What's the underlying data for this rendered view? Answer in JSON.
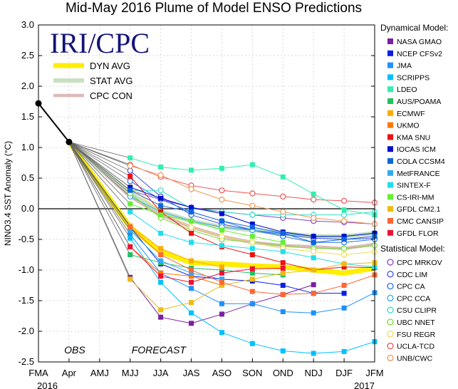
{
  "chart_data": {
    "type": "line",
    "title": "Mid-May 2016 Plume of Model ENSO Predictions",
    "logo_text": "IRI/CPC",
    "ylabel": "NINO3.4 SST Anomaly (°C)",
    "xlabel": "",
    "ylim": [
      -2.5,
      3.0
    ],
    "yticks": [
      "3.0",
      "2.5",
      "2.0",
      "1.5",
      "1.0",
      "0.5",
      "0.0",
      "-0.5",
      "-1.0",
      "-1.5",
      "-2.0",
      "-2.5"
    ],
    "categories": [
      "FMA",
      "Apr",
      "AMJ",
      "MJJ",
      "JJA",
      "JAS",
      "ASO",
      "SON",
      "OND",
      "NDJ",
      "DJF",
      "JFM"
    ],
    "year_labels": {
      "start": "2016",
      "end": "2017"
    },
    "region_labels": {
      "obs": "OBS",
      "forecast": "FORECAST"
    },
    "grid": true,
    "legend": {
      "placement": "right",
      "dynamical_title": "Dynamical Model:",
      "statistical_title": "Statistical Model:"
    },
    "observed": {
      "name": "OBS",
      "color": "#000000",
      "values": [
        1.72,
        1.09
      ]
    },
    "averages": [
      {
        "name": "DYN AVG",
        "color": "#ffee00",
        "values": [
          null,
          1.09,
          null,
          -0.3,
          -0.7,
          -0.88,
          -0.9,
          -0.93,
          -0.95,
          -1.0,
          -1.05,
          -0.97
        ]
      },
      {
        "name": "STAT AVG",
        "color": "#c8e0c0",
        "values": [
          null,
          1.09,
          null,
          0.25,
          -0.05,
          -0.2,
          -0.3,
          -0.35,
          -0.4,
          -0.45,
          -0.45,
          -0.4
        ]
      },
      {
        "name": "CPC CON",
        "color": "#ddb9b9",
        "values": [
          null,
          1.09,
          null,
          0.2,
          -0.1,
          -0.3,
          -0.45,
          -0.55,
          -0.6,
          -0.62,
          -0.65,
          -0.58
        ]
      }
    ],
    "dynamical_series": [
      {
        "name": "NASA GMAO",
        "color": "#7a1fa2",
        "values": [
          null,
          1.09,
          null,
          -1.12,
          -1.77,
          -1.87,
          -1.72,
          -1.55,
          -1.4,
          -1.24,
          null,
          null
        ]
      },
      {
        "name": "NCEP CFSv2",
        "color": "#0a1ee6",
        "values": [
          null,
          1.09,
          null,
          -0.3,
          -0.9,
          -1.1,
          -1.15,
          -1.18,
          -1.25,
          -1.38,
          -1.38,
          null
        ]
      },
      {
        "name": "JMA",
        "color": "#1e90ff",
        "values": [
          null,
          1.09,
          null,
          -0.42,
          -1.05,
          -1.3,
          -1.55,
          -1.55,
          -1.68,
          -1.7,
          -1.62,
          -1.37
        ]
      },
      {
        "name": "SCRIPPS",
        "color": "#00c0ff",
        "values": [
          null,
          1.09,
          null,
          -0.48,
          -1.2,
          -1.7,
          -2.02,
          -2.2,
          -2.32,
          -2.36,
          -2.33,
          -2.17
        ]
      },
      {
        "name": "LDEO",
        "color": "#33eeb0",
        "values": [
          null,
          1.09,
          null,
          0.83,
          0.68,
          0.63,
          0.66,
          0.72,
          0.52,
          0.24,
          -0.02,
          -0.1
        ]
      },
      {
        "name": "AUS/POAMA",
        "color": "#22c066",
        "values": [
          null,
          1.09,
          null,
          -0.75,
          -0.88,
          -0.97,
          -1.0,
          -1.05,
          -1.08,
          null,
          null,
          null
        ]
      },
      {
        "name": "ECMWF",
        "color": "#ffaa00",
        "values": [
          null,
          1.09,
          null,
          -0.28,
          -0.65,
          -0.85,
          -0.95,
          null,
          null,
          null,
          null,
          null
        ]
      },
      {
        "name": "UKMO",
        "color": "#ff7700",
        "values": [
          null,
          1.09,
          null,
          -0.62,
          -1.05,
          -1.1,
          -1.25,
          null,
          null,
          null,
          null,
          null
        ]
      },
      {
        "name": "KMA SNU",
        "color": "#ee1111",
        "values": [
          null,
          1.09,
          null,
          0.53,
          -0.05,
          -0.4,
          -0.62,
          -0.75,
          -0.88,
          -1.0,
          -0.95,
          -0.96
        ]
      },
      {
        "name": "IOCAS ICM",
        "color": "#0010cc",
        "values": [
          null,
          1.09,
          null,
          0.35,
          0.17,
          0.02,
          -0.08,
          -0.25,
          -0.38,
          -0.45,
          -0.45,
          -0.4
        ]
      },
      {
        "name": "COLA CCSM4",
        "color": "#0e66dd",
        "values": [
          null,
          1.09,
          null,
          0.3,
          0.05,
          -0.05,
          -0.2,
          -0.3,
          -0.4,
          -0.55,
          -0.5,
          -0.45
        ]
      },
      {
        "name": "MetFRANCE",
        "color": "#33aaee",
        "values": [
          null,
          1.09,
          null,
          -0.35,
          -0.85,
          -1.05,
          -1.15,
          null,
          null,
          null,
          null,
          null
        ]
      },
      {
        "name": "SINTEX-F",
        "color": "#22ddee",
        "values": [
          null,
          1.09,
          null,
          -0.05,
          -0.4,
          -0.55,
          -0.6,
          -0.65,
          -0.7,
          -0.8,
          -0.9,
          -0.95
        ]
      },
      {
        "name": "CS-IRI-MM",
        "color": "#66ee33",
        "values": [
          null,
          1.09,
          null,
          0.08,
          -0.1,
          -0.2,
          -0.35,
          -0.45,
          -0.55,
          null,
          null,
          null
        ]
      },
      {
        "name": "GFDL CM2.1",
        "color": "#eebb11",
        "values": [
          null,
          1.09,
          null,
          -1.15,
          -1.65,
          -1.53,
          -1.25,
          -1.15,
          -1.05,
          -1.0,
          -0.9,
          -0.88
        ]
      },
      {
        "name": "CMC CANSIP",
        "color": "#ff6633",
        "values": [
          null,
          1.09,
          null,
          -0.3,
          -0.75,
          -1.0,
          -1.2,
          -1.35,
          -1.4,
          -1.38,
          -1.25,
          -1.08
        ]
      },
      {
        "name": "GFDL FLOR",
        "color": "#ee1133",
        "values": [
          null,
          1.09,
          null,
          -0.62,
          -1.1,
          -1.2,
          -1.05,
          -0.98,
          -0.97,
          null,
          null,
          null
        ]
      }
    ],
    "statistical_series": [
      {
        "name": "CPC MRKOV",
        "color": "#8844cc",
        "values": [
          null,
          1.09,
          null,
          0.3,
          0.15,
          0.02,
          -0.05,
          -0.1,
          -0.15,
          -0.2,
          -0.22,
          -0.25
        ]
      },
      {
        "name": "CDC LIM",
        "color": "#4455dd",
        "values": [
          null,
          1.09,
          null,
          0.62,
          0.2,
          -0.1,
          -0.25,
          -0.35,
          -0.42,
          -0.48,
          -0.5,
          -0.48
        ]
      },
      {
        "name": "CPC CA",
        "color": "#2277ee",
        "values": [
          null,
          1.09,
          null,
          0.45,
          0.15,
          -0.05,
          -0.2,
          -0.35,
          -0.45,
          -0.55,
          -0.55,
          -0.5
        ]
      },
      {
        "name": "CPC CCA",
        "color": "#33aaee",
        "values": [
          null,
          1.09,
          null,
          0.2,
          -0.05,
          -0.2,
          -0.3,
          -0.35,
          -0.4,
          -0.45,
          -0.45,
          -0.4
        ]
      },
      {
        "name": "CSU CLIPR",
        "color": "#33ddcc",
        "values": [
          null,
          1.09,
          null,
          0.3,
          0.3,
          0.0,
          -0.05,
          -0.1,
          -0.1,
          -0.1,
          -0.1,
          -0.05
        ]
      },
      {
        "name": "UBC NNET",
        "color": "#77dd33",
        "values": [
          null,
          1.09,
          null,
          0.25,
          -0.15,
          -0.35,
          -0.5,
          -0.55,
          -0.6,
          -0.65,
          -0.65,
          -0.6
        ]
      },
      {
        "name": "FSU REGR",
        "color": "#eedd55",
        "values": [
          null,
          1.09,
          null,
          0.35,
          -0.05,
          -0.3,
          -0.45,
          -0.55,
          -0.65,
          -0.7,
          -0.75,
          -0.7
        ]
      },
      {
        "name": "UCLA-TCD",
        "color": "#ee5555",
        "values": [
          null,
          1.09,
          null,
          0.72,
          0.52,
          0.38,
          0.3,
          0.25,
          0.2,
          0.15,
          0.13,
          0.1
        ]
      },
      {
        "name": "UNB/CWC",
        "color": "#ee9955",
        "values": [
          null,
          1.09,
          null,
          0.7,
          0.55,
          0.32,
          0.15,
          0.05,
          -0.05,
          -0.15,
          -0.2,
          -0.25
        ]
      }
    ]
  }
}
